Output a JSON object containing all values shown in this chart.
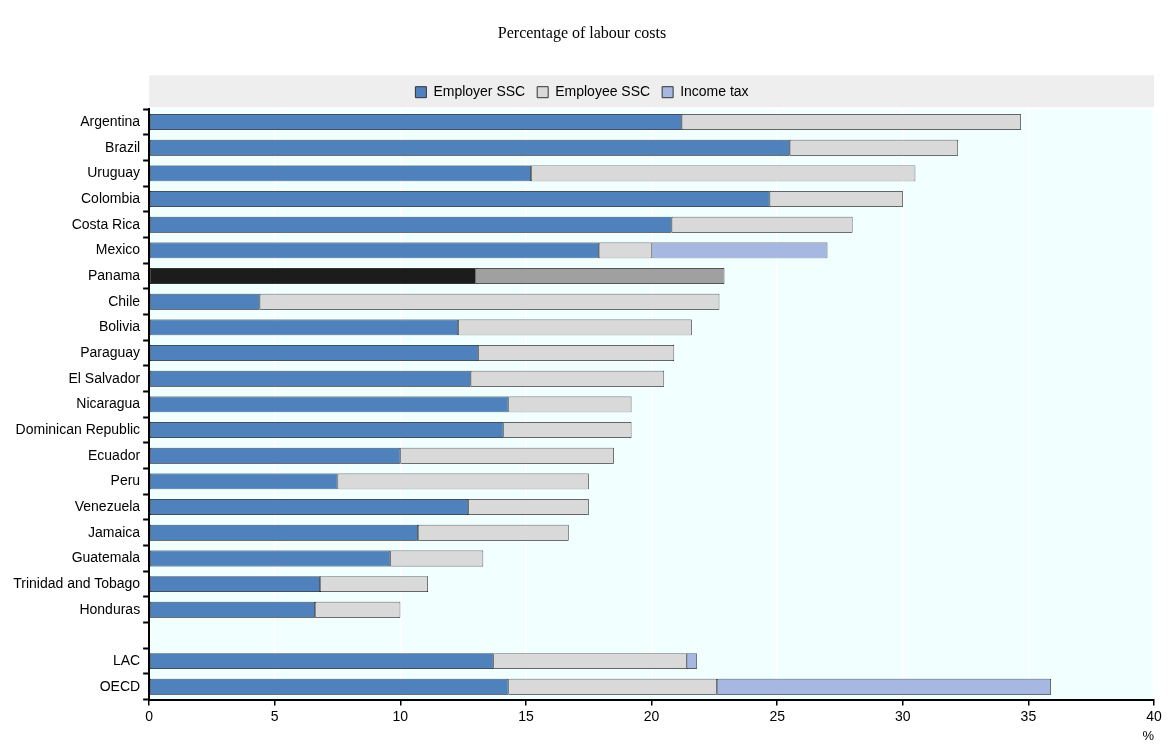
{
  "chart_data": {
    "type": "bar",
    "orientation": "horizontal",
    "stacked": true,
    "title": "Percentage of labour costs",
    "xlabel": "%",
    "categories": [
      "Argentina",
      "Brazil",
      "Uruguay",
      "Colombia",
      "Costa Rica",
      "Mexico",
      "Panama",
      "Chile",
      "Bolivia",
      "Paraguay",
      "El Salvador",
      "Nicaragua",
      "Dominican Republic",
      "Ecuador",
      "Peru",
      "Venezuela",
      "Jamaica",
      "Guatemala",
      "Trinidad and Tobago",
      "Honduras",
      null,
      "LAC",
      "OECD"
    ],
    "series": [
      {
        "name": "Employer SSC",
        "color": "#4f81bd",
        "colors": [
          "#4f81bd",
          "#4f81bd",
          "#4f81bd",
          "#4f81bd",
          "#4f81bd",
          "#4f81bd",
          "#1c1c1c",
          "#4f81bd",
          "#4f81bd",
          "#4f81bd",
          "#4f81bd",
          "#4f81bd",
          "#4f81bd",
          "#4f81bd",
          "#4f81bd",
          "#4f81bd",
          "#4f81bd",
          "#4f81bd",
          "#4f81bd",
          "#4f81bd",
          "#4f81bd",
          "#4f81bd",
          "#4f81bd"
        ],
        "values": [
          21.2,
          25.5,
          15.2,
          24.7,
          20.8,
          17.9,
          13.0,
          4.4,
          12.3,
          13.1,
          12.8,
          14.3,
          14.1,
          10.0,
          7.5,
          12.7,
          10.7,
          9.6,
          6.8,
          6.6,
          null,
          13.7,
          14.3
        ]
      },
      {
        "name": "Employee SSC",
        "color": "#d9d9d9",
        "colors": [
          "#d9d9d9",
          "#d9d9d9",
          "#d9d9d9",
          "#d9d9d9",
          "#d9d9d9",
          "#d9d9d9",
          "#a0a0a0",
          "#d9d9d9",
          "#d9d9d9",
          "#d9d9d9",
          "#d9d9d9",
          "#d9d9d9",
          "#d9d9d9",
          "#d9d9d9",
          "#d9d9d9",
          "#d9d9d9",
          "#d9d9d9",
          "#d9d9d9",
          "#d9d9d9",
          "#d9d9d9",
          "#d9d9d9",
          "#d9d9d9",
          "#d9d9d9"
        ],
        "values": [
          13.5,
          6.7,
          15.3,
          5.3,
          7.2,
          2.1,
          9.9,
          18.3,
          9.3,
          7.8,
          7.7,
          4.9,
          5.1,
          8.5,
          10.0,
          4.8,
          6.0,
          3.7,
          4.3,
          3.4,
          null,
          7.7,
          8.3
        ]
      },
      {
        "name": "Income tax",
        "color": "#a6b8e2",
        "values": [
          null,
          null,
          null,
          null,
          null,
          7.0,
          null,
          null,
          null,
          null,
          null,
          null,
          null,
          null,
          null,
          null,
          null,
          null,
          null,
          null,
          null,
          0.4,
          13.3
        ]
      }
    ],
    "xlim": [
      0,
      40
    ],
    "xticks": [
      0,
      5,
      10,
      15,
      20,
      25,
      30,
      35,
      40
    ],
    "grid": "x",
    "legend": "top"
  }
}
